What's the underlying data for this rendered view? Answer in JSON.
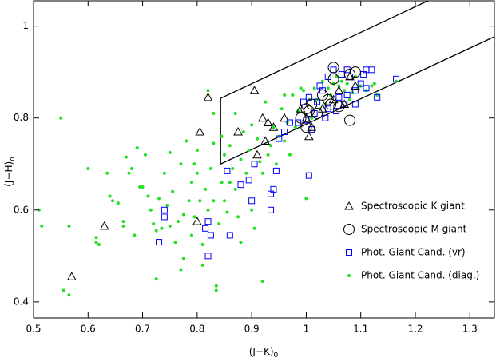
{
  "chart_data": {
    "type": "scatter",
    "xlabel": "(J−K)",
    "xlabel_sub": "0",
    "ylabel": "(J−H)",
    "ylabel_sub": "o",
    "xlim": [
      0.5,
      1.345
    ],
    "ylim": [
      0.365,
      1.055
    ],
    "xticks": [
      0.5,
      0.6,
      0.7,
      0.8,
      0.9,
      1,
      1.1,
      1.2,
      1.3
    ],
    "yticks": [
      0.4,
      0.6,
      0.8,
      1
    ],
    "legend": "lower right",
    "selection_box": {
      "color": "#000000",
      "x": [
        1.223,
        0.843,
        0.843,
        1.345
      ],
      "y": [
        1.055,
        0.843,
        0.7,
        0.977
      ]
    },
    "series": [
      {
        "name": "Spectroscopic K giant",
        "color": "#000000",
        "marker": "triangle",
        "x": [
          0.57,
          0.63,
          0.8,
          0.805,
          0.82,
          0.875,
          0.905,
          0.92,
          0.93,
          0.94,
          0.91,
          0.925,
          0.96,
          0.99,
          1.0,
          1.005,
          1.01,
          1.03,
          1.05,
          1.06,
          1.08,
          1.09,
          1.07
        ],
        "values": [
          0.455,
          0.565,
          0.575,
          0.77,
          0.845,
          0.77,
          0.86,
          0.8,
          0.79,
          0.78,
          0.72,
          0.75,
          0.8,
          0.82,
          0.8,
          0.76,
          0.78,
          0.82,
          0.84,
          0.86,
          0.89,
          0.87,
          0.83
        ]
      },
      {
        "name": "Spectroscopic M giant",
        "color": "#000000",
        "marker": "circle",
        "x": [
          1.05,
          1.05,
          1.08,
          1.09,
          1.03,
          1.04,
          1.045,
          1.01,
          1.0,
          1.005,
          1.0,
          1.08,
          1.06,
          1.02,
          0.99
        ],
        "values": [
          0.91,
          0.885,
          0.895,
          0.9,
          0.85,
          0.84,
          0.83,
          0.83,
          0.82,
          0.815,
          0.78,
          0.795,
          0.825,
          0.81,
          0.8
        ]
      },
      {
        "name": "Phot. Giant Cand. (vr)",
        "color": "#0000ff",
        "marker": "square",
        "x": [
          0.73,
          0.74,
          0.74,
          0.815,
          0.82,
          0.82,
          0.825,
          0.86,
          0.855,
          0.88,
          0.9,
          0.905,
          0.935,
          0.935,
          0.94,
          0.945,
          1.005,
          0.96,
          0.97,
          0.995,
          1.005,
          1.025,
          1.03,
          1.04,
          1.05,
          1.065,
          1.075,
          1.08,
          1.1,
          1.105,
          1.11,
          1.12,
          1.11,
          1.13,
          1.165,
          1.09,
          1.07,
          1.06,
          1.04,
          1.02,
          1.015,
          0.985,
          1.0,
          1.055,
          1.075,
          1.09,
          1.035,
          1.01,
          0.95,
          0.895
        ],
        "values": [
          0.53,
          0.6,
          0.585,
          0.56,
          0.575,
          0.5,
          0.545,
          0.545,
          0.685,
          0.655,
          0.62,
          0.7,
          0.6,
          0.635,
          0.645,
          0.685,
          0.675,
          0.77,
          0.79,
          0.835,
          0.845,
          0.87,
          0.86,
          0.89,
          0.905,
          0.895,
          0.905,
          0.89,
          0.875,
          0.895,
          0.905,
          0.905,
          0.865,
          0.845,
          0.885,
          0.83,
          0.83,
          0.845,
          0.82,
          0.835,
          0.81,
          0.79,
          0.795,
          0.815,
          0.85,
          0.86,
          0.8,
          0.775,
          0.755,
          0.665
        ]
      },
      {
        "name": "Phot. Giant Cand. (diag.)",
        "color": "#22e022",
        "marker": "dot",
        "x": [
          0.51,
          0.515,
          0.55,
          0.555,
          0.565,
          0.565,
          0.6,
          0.615,
          0.62,
          0.615,
          0.635,
          0.64,
          0.645,
          0.655,
          0.665,
          0.665,
          0.67,
          0.675,
          0.68,
          0.685,
          0.69,
          0.695,
          0.7,
          0.705,
          0.71,
          0.715,
          0.72,
          0.725,
          0.725,
          0.73,
          0.735,
          0.74,
          0.745,
          0.75,
          0.75,
          0.755,
          0.76,
          0.765,
          0.77,
          0.77,
          0.775,
          0.775,
          0.78,
          0.785,
          0.79,
          0.79,
          0.795,
          0.8,
          0.8,
          0.805,
          0.81,
          0.81,
          0.815,
          0.82,
          0.825,
          0.83,
          0.83,
          0.835,
          0.835,
          0.84,
          0.845,
          0.845,
          0.85,
          0.85,
          0.855,
          0.86,
          0.865,
          0.87,
          0.87,
          0.875,
          0.88,
          0.88,
          0.885,
          0.89,
          0.895,
          0.9,
          0.9,
          0.905,
          0.91,
          0.915,
          0.92,
          0.92,
          0.925,
          0.93,
          0.935,
          0.94,
          0.945,
          0.95,
          0.955,
          0.96,
          0.965,
          0.97,
          0.975,
          0.98,
          0.985,
          0.99,
          0.995,
          1.0,
          1.005,
          1.01,
          1.015,
          1.02,
          1.025,
          1.03,
          1.035,
          1.04,
          1.045,
          1.05,
          1.055,
          1.06,
          1.065,
          1.07,
          1.075,
          1.08,
          1.085,
          1.09,
          1.095,
          1.1,
          1.11,
          1.12,
          1.125,
          1.13,
          1.165,
          0.86,
          0.82,
          0.96,
          0.83,
          0.795
        ],
        "values": [
          0.6,
          0.565,
          0.8,
          0.425,
          0.415,
          0.565,
          0.69,
          0.53,
          0.525,
          0.54,
          0.68,
          0.63,
          0.62,
          0.615,
          0.575,
          0.565,
          0.715,
          0.68,
          0.69,
          0.545,
          0.735,
          0.65,
          0.65,
          0.72,
          0.63,
          0.6,
          0.57,
          0.555,
          0.45,
          0.625,
          0.56,
          0.68,
          0.61,
          0.725,
          0.565,
          0.64,
          0.53,
          0.575,
          0.7,
          0.47,
          0.495,
          0.59,
          0.75,
          0.62,
          0.66,
          0.545,
          0.585,
          0.73,
          0.68,
          0.62,
          0.525,
          0.48,
          0.645,
          0.6,
          0.69,
          0.745,
          0.62,
          0.435,
          0.425,
          0.57,
          0.76,
          0.66,
          0.62,
          0.72,
          0.595,
          0.74,
          0.69,
          0.81,
          0.645,
          0.585,
          0.71,
          0.53,
          0.77,
          0.68,
          0.73,
          0.785,
          0.6,
          0.56,
          0.755,
          0.705,
          0.68,
          0.445,
          0.835,
          0.72,
          0.74,
          0.78,
          0.7,
          0.76,
          0.82,
          0.85,
          0.79,
          0.72,
          0.85,
          0.78,
          0.815,
          0.865,
          0.86,
          0.625,
          0.84,
          0.8,
          0.865,
          0.84,
          0.82,
          0.88,
          0.83,
          0.865,
          0.85,
          0.875,
          0.89,
          0.87,
          0.88,
          0.86,
          0.875,
          0.84,
          0.855,
          0.89,
          0.865,
          0.87,
          0.86,
          0.87,
          0.875,
          0.85,
          0.88,
          0.66,
          0.86,
          0.75,
          0.81,
          0.7
        ]
      }
    ]
  }
}
